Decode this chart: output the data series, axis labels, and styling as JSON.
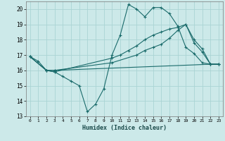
{
  "xlabel": "Humidex (Indice chaleur)",
  "bg_color": "#cce9e9",
  "grid_color": "#aad4d4",
  "line_color": "#1a6b6b",
  "xlim": [
    -0.5,
    23.5
  ],
  "ylim": [
    13,
    20.5
  ],
  "yticks": [
    13,
    14,
    15,
    16,
    17,
    18,
    19,
    20
  ],
  "xticks": [
    0,
    1,
    2,
    3,
    4,
    5,
    6,
    7,
    8,
    9,
    10,
    11,
    12,
    13,
    14,
    15,
    16,
    17,
    18,
    19,
    20,
    21,
    22,
    23
  ],
  "lines": [
    {
      "x": [
        0,
        1,
        2,
        3,
        4,
        5,
        6,
        7,
        8,
        9,
        10,
        11,
        12,
        13,
        14,
        15,
        16,
        17,
        18,
        19,
        20,
        21,
        22,
        23
      ],
      "y": [
        16.9,
        16.6,
        16.0,
        15.9,
        15.6,
        15.3,
        15.0,
        13.3,
        13.8,
        14.8,
        17.0,
        18.3,
        20.3,
        20.0,
        19.5,
        20.1,
        20.1,
        19.7,
        18.9,
        17.5,
        17.1,
        16.5,
        16.4,
        16.4
      ]
    },
    {
      "x": [
        0,
        2,
        3,
        10,
        11,
        12,
        13,
        14,
        15,
        16,
        17,
        18,
        19,
        20,
        21,
        22,
        23
      ],
      "y": [
        16.9,
        16.0,
        15.9,
        16.8,
        17.0,
        17.3,
        17.6,
        18.0,
        18.3,
        18.5,
        18.7,
        18.8,
        19.0,
        17.8,
        17.2,
        16.4,
        16.4
      ]
    },
    {
      "x": [
        0,
        2,
        3,
        10,
        13,
        14,
        15,
        16,
        17,
        18,
        19,
        20,
        21,
        22,
        23
      ],
      "y": [
        16.9,
        16.0,
        16.0,
        16.5,
        17.0,
        17.3,
        17.5,
        17.7,
        18.1,
        18.6,
        19.0,
        18.0,
        17.4,
        16.4,
        16.4
      ]
    },
    {
      "x": [
        0,
        2,
        3,
        22,
        23
      ],
      "y": [
        16.9,
        16.0,
        16.0,
        16.4,
        16.4
      ]
    }
  ]
}
